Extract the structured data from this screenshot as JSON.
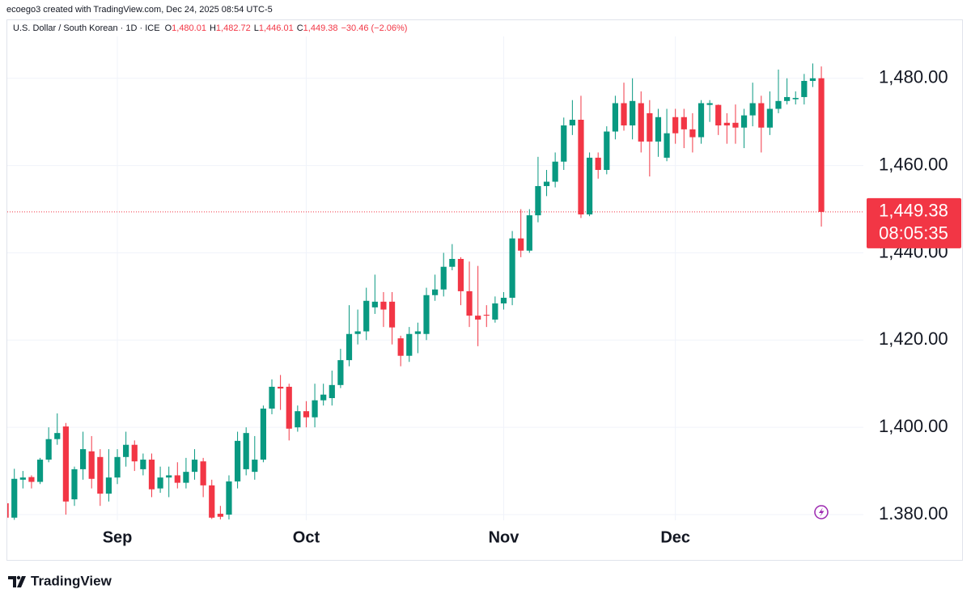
{
  "header": "ecoego3 created with TradingView.com, Dec 24, 2025 08:54 UTC-5",
  "footer_logo": "TradingView",
  "chart_data": {
    "type": "candlestick",
    "symbol": "U.S. Dollar / South Korean · 1D · ICE",
    "ohlc_legend": [
      {
        "key": "O",
        "value": "1,480.01"
      },
      {
        "key": "H",
        "value": "1,482.72"
      },
      {
        "key": "L",
        "value": "1,446.01"
      },
      {
        "key": "C",
        "value": "1,449.38"
      }
    ],
    "change": "−30.46 (−2.06%)",
    "up_color": "#089981",
    "down_color": "#f23645",
    "categories": [
      null,
      null,
      null,
      null,
      null,
      null,
      null,
      null,
      null,
      null,
      null,
      null,
      null,
      "Sep",
      null,
      null,
      null,
      null,
      null,
      null,
      null,
      null,
      null,
      null,
      null,
      null,
      null,
      null,
      null,
      null,
      null,
      null,
      null,
      null,
      null,
      "Oct",
      null,
      null,
      null,
      null,
      null,
      null,
      null,
      null,
      null,
      null,
      null,
      null,
      null,
      null,
      null,
      null,
      null,
      null,
      null,
      null,
      null,
      null,
      "Nov",
      null,
      null,
      null,
      null,
      null,
      null,
      null,
      null,
      null,
      null,
      null,
      null,
      null,
      null,
      null,
      null,
      null,
      null,
      null,
      "Dec",
      null,
      null,
      null,
      null,
      null,
      null,
      null,
      null,
      null,
      null,
      null,
      null,
      null,
      null,
      null,
      null,
      null
    ],
    "open": [
      1382.6,
      1379.3,
      1388,
      1388.6,
      1387.5,
      1392.6,
      1397.3,
      1400.2,
      1383.5,
      1390.4,
      1394.5,
      1393.2,
      1384.8,
      1388.5,
      1393.2,
      1396,
      1390.4,
      1392.6,
      1386,
      1388.5,
      1389,
      1387.3,
      1389.8,
      1392.2,
      1386.7,
      1380.2,
      1380,
      1387.6,
      1390.4,
      1389.8,
      1392.6,
      1404.3,
      1409.3,
      1409.3,
      1400,
      1403.7,
      1402.3,
      1406.2,
      1406.7,
      1409.7,
      1415.4,
      1421.4,
      1422,
      1427.5,
      1428.8,
      1428.8,
      1420.4,
      1416.4,
      1421.4,
      1421.4,
      1430.3,
      1431.6,
      1436.8,
      1438.6,
      1431.2,
      1425.6,
      1425.8,
      1424.7,
      1428.4,
      1429.7,
      1443.3,
      1440.5,
      1448.6,
      1455.3,
      1456.3,
      1460.9,
      1469.2,
      1470.5,
      1448.8,
      1461.8,
      1459,
      1467.8,
      1474.3,
      1469.2,
      1474.3,
      1472,
      1465.5,
      1461.8,
      1471.1,
      1471.1,
      1468.3,
      1466.5,
      1473.9,
      1473.9,
      1469.8,
      1469.8,
      1468.7,
      1471.5,
      1474.3,
      1468.7,
      1473,
      1474.8,
      1475.2,
      1475.7,
      1479.4,
      1480.01
    ],
    "high": [
      1383,
      1390.5,
      1390,
      1389,
      1393,
      1400,
      1403.2,
      1401,
      1391,
      1399,
      1398,
      1395,
      1395,
      1395,
      1399,
      1397,
      1394,
      1394,
      1391,
      1391,
      1392,
      1393,
      1395,
      1393,
      1388,
      1382,
      1389,
      1399,
      1400,
      1398,
      1405,
      1411,
      1412,
      1410,
      1405,
      1406,
      1410,
      1410,
      1413,
      1418,
      1428,
      1427,
      1432,
      1435,
      1431,
      1431,
      1421,
      1423,
      1424,
      1432,
      1435,
      1440,
      1442,
      1439,
      1438,
      1437,
      1428,
      1430,
      1431,
      1445,
      1450,
      1450,
      1462,
      1459,
      1463,
      1471,
      1475,
      1476,
      1463,
      1463,
      1469,
      1476,
      1479,
      1480,
      1477,
      1475,
      1473,
      1473,
      1473,
      1473,
      1472,
      1475,
      1475,
      1474,
      1472,
      1474,
      1473,
      1479,
      1476,
      1477,
      1482,
      1480,
      1477,
      1481,
      1483.4,
      1482.72
    ],
    "low": [
      1379,
      1378.8,
      1386,
      1386,
      1387,
      1392,
      1396,
      1380,
      1382,
      1388,
      1386,
      1382,
      1383,
      1387,
      1391,
      1390,
      1389,
      1384,
      1385,
      1384,
      1386,
      1386,
      1388,
      1384,
      1379,
      1378.9,
      1378.9,
      1386,
      1389,
      1388,
      1392,
      1403,
      1404,
      1397,
      1399,
      1400,
      1400,
      1405,
      1405,
      1409,
      1414,
      1419,
      1420,
      1426,
      1423,
      1419,
      1414,
      1415,
      1417,
      1420,
      1429,
      1430,
      1436,
      1428,
      1423,
      1418.6,
      1423,
      1424,
      1427,
      1428,
      1439,
      1440,
      1447,
      1453,
      1455,
      1459,
      1467,
      1448,
      1448.4,
      1457,
      1458,
      1466,
      1468,
      1466,
      1463,
      1457.5,
      1462,
      1461,
      1465,
      1464,
      1463,
      1465,
      1470,
      1467,
      1465,
      1465,
      1464,
      1469,
      1463,
      1467,
      1472,
      1474,
      1474,
      1474,
      1478,
      1446.01
    ],
    "close": [
      1379.3,
      1388.2,
      1388.5,
      1387.5,
      1392.6,
      1397.3,
      1398.7,
      1383,
      1390.4,
      1395,
      1388.2,
      1384.8,
      1388.5,
      1393.2,
      1396,
      1392.2,
      1392.6,
      1385.8,
      1388.5,
      1389,
      1387.3,
      1389.8,
      1392.6,
      1386.7,
      1379.3,
      1379.5,
      1387.6,
      1396.9,
      1398.7,
      1392.6,
      1404.3,
      1409.3,
      1408.9,
      1399.7,
      1403.7,
      1402.3,
      1406.2,
      1407.5,
      1409.7,
      1415.4,
      1421.4,
      1422,
      1429,
      1428.8,
      1427,
      1422.9,
      1416.4,
      1421.4,
      1422,
      1430.3,
      1431.6,
      1436.8,
      1438.6,
      1431.2,
      1425.6,
      1424.7,
      1425.6,
      1428.4,
      1429.7,
      1443.3,
      1440.5,
      1448.6,
      1455.3,
      1456.3,
      1460.9,
      1469.2,
      1470.5,
      1448.8,
      1461.8,
      1459,
      1467.8,
      1474.3,
      1469.2,
      1474.8,
      1465.5,
      1465.5,
      1471.1,
      1467.4,
      1467.4,
      1468.3,
      1466.5,
      1474.3,
      1474.3,
      1469.2,
      1469.2,
      1468.7,
      1471.5,
      1474.3,
      1468.7,
      1473,
      1474.8,
      1475.7,
      1475.5,
      1479.4,
      1480,
      1449.38
    ],
    "ylim": [
      1378.7,
      1489.6
    ],
    "yticks": [
      {
        "value": 1380,
        "label": "1.380.00"
      },
      {
        "value": 1400,
        "label": "1,400.00"
      },
      {
        "value": 1420,
        "label": "1,420.00"
      },
      {
        "value": 1440,
        "label": "1,440.00"
      },
      {
        "value": 1460,
        "label": "1,460.00"
      },
      {
        "value": 1480,
        "label": "1,480.00"
      }
    ],
    "grid": true,
    "last_price": {
      "value": 1449.38,
      "label": "1,449.38"
    },
    "countdown": "08:05:35"
  }
}
